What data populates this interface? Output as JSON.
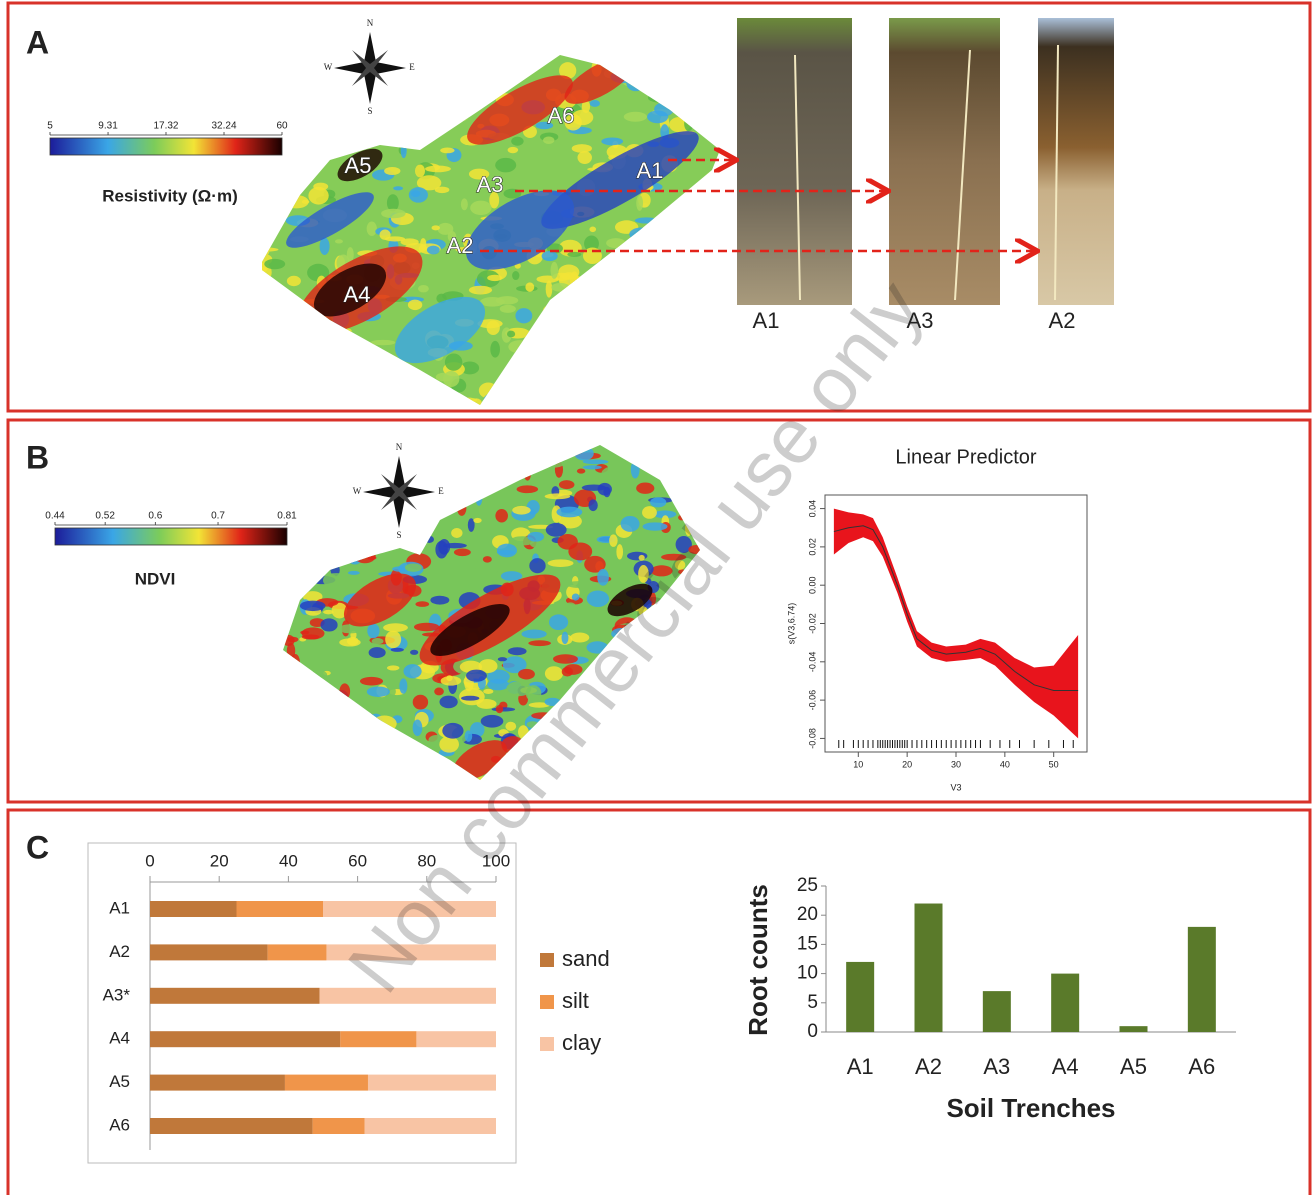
{
  "panels": {
    "a": "A",
    "b": "B",
    "c": "C"
  },
  "watermark": "Non commercial use only",
  "resistivity_map": {
    "compass": {
      "n": "N",
      "w": "W",
      "e": "E",
      "s": "S"
    },
    "colorbar": {
      "ticks": [
        5,
        9.31,
        17.32,
        32.24,
        60
      ],
      "log": true,
      "label": "Resistivity (Ω·m)"
    },
    "sites": [
      "A5",
      "A6",
      "A3",
      "A1",
      "A2",
      "A4"
    ],
    "photos": [
      "A1",
      "A3",
      "A2"
    ]
  },
  "ndvi_map": {
    "compass": {
      "n": "N",
      "w": "W",
      "e": "E",
      "s": "S"
    },
    "colorbar": {
      "ticks": [
        0.44,
        0.52,
        0.6,
        0.7,
        0.81
      ],
      "log": false,
      "label": "NDVI"
    }
  },
  "chart_data": [
    {
      "type": "line",
      "title": "Linear Predictor",
      "x_label": "V3",
      "y_label": "s(V3,6.74)",
      "x": [
        5,
        8,
        11,
        13,
        15,
        18,
        20,
        22,
        25,
        28,
        32,
        35,
        38,
        42,
        46,
        50,
        55
      ],
      "values": [
        0.028,
        0.03,
        0.031,
        0.029,
        0.02,
        0.0,
        -0.015,
        -0.028,
        -0.034,
        -0.036,
        -0.035,
        -0.033,
        -0.036,
        -0.045,
        -0.052,
        -0.055,
        -0.055
      ],
      "lower": [
        0.016,
        0.022,
        0.025,
        0.023,
        0.015,
        -0.004,
        -0.019,
        -0.032,
        -0.038,
        -0.04,
        -0.039,
        -0.038,
        -0.042,
        -0.052,
        -0.061,
        -0.068,
        -0.08
      ],
      "upper": [
        0.04,
        0.038,
        0.037,
        0.035,
        0.025,
        0.004,
        -0.011,
        -0.024,
        -0.03,
        -0.032,
        -0.031,
        -0.028,
        -0.03,
        -0.038,
        -0.043,
        -0.042,
        -0.026
      ],
      "band_color": "#e8141c",
      "color": "#333333",
      "rug": [
        6,
        7,
        9,
        10,
        11,
        12,
        13,
        14,
        14.5,
        15,
        15.5,
        16,
        16.5,
        17,
        17.5,
        18,
        18.5,
        19,
        19.5,
        20,
        21,
        22,
        23,
        24,
        25,
        26,
        27,
        28,
        29,
        30,
        31,
        32,
        33,
        34,
        35,
        37,
        39,
        41,
        43,
        46,
        49,
        52,
        54
      ],
      "xlim": [
        4,
        56
      ],
      "ylim": [
        -0.085,
        0.045
      ],
      "xticks": [
        10,
        20,
        30,
        40,
        50
      ],
      "yticks": [
        0.04,
        0.02,
        {
          "value": 0,
          "label": "0.00"
        },
        -0.02,
        -0.04,
        -0.06,
        -0.08
      ]
    },
    {
      "type": "bar",
      "orientation": "horizontal",
      "stacked": true,
      "categories": [
        "A1",
        "A2",
        "A3*",
        "A4",
        "A5",
        "A6"
      ],
      "series": [
        {
          "name": "sand",
          "color": "#c0783a",
          "values": [
            25,
            34,
            49,
            55,
            39,
            47
          ]
        },
        {
          "name": "silt",
          "color": "#f0954a",
          "values": [
            25,
            17,
            0,
            22,
            24,
            15
          ]
        },
        {
          "name": "clay",
          "color": "#f8c4a4",
          "values": [
            50,
            49,
            51,
            23,
            37,
            38
          ]
        }
      ],
      "xlim": [
        0,
        100
      ],
      "xticks": [
        0,
        20,
        40,
        60,
        80,
        100
      ]
    },
    {
      "type": "bar",
      "orientation": "vertical",
      "x_label": "Soil Trenches",
      "y_label": "Root counts",
      "categories": [
        "A1",
        "A2",
        "A3",
        "A4",
        "A5",
        "A6"
      ],
      "values": [
        12,
        22,
        7,
        10,
        1,
        18
      ],
      "color": "#5a7a2a",
      "ylim": [
        0,
        25
      ],
      "yticks": [
        0,
        5,
        10,
        15,
        20,
        25
      ]
    }
  ]
}
